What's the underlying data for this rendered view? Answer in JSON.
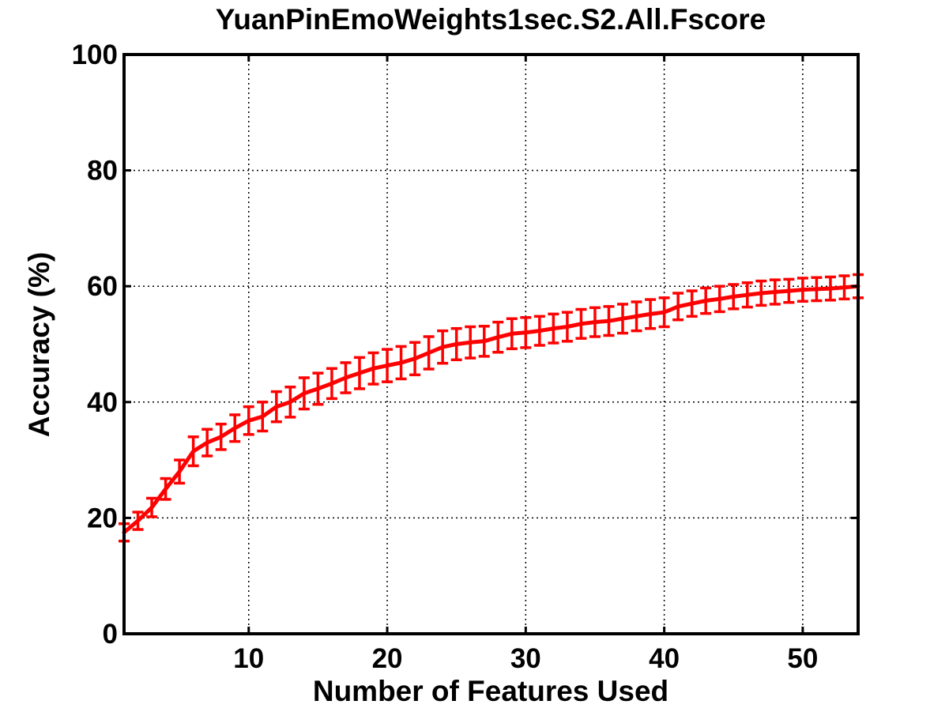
{
  "chart_data": {
    "type": "line",
    "title": "YuanPinEmoWeights1sec.S2.All.Fscore",
    "xlabel": "Number of Features Used",
    "ylabel": "Accuracy (%)",
    "xlim": [
      1,
      54
    ],
    "ylim": [
      0,
      100
    ],
    "xticks": [
      10,
      20,
      30,
      40,
      50
    ],
    "yticks": [
      0,
      20,
      40,
      60,
      80,
      100
    ],
    "grid": true,
    "grid_style": "dotted",
    "box": true,
    "series": [
      {
        "color": "#ff0000",
        "error_bars": true,
        "x": [
          1,
          2,
          3,
          4,
          5,
          6,
          7,
          8,
          9,
          10,
          11,
          12,
          13,
          14,
          15,
          16,
          17,
          18,
          19,
          20,
          21,
          22,
          23,
          24,
          25,
          26,
          27,
          28,
          29,
          30,
          31,
          32,
          33,
          34,
          35,
          36,
          37,
          38,
          39,
          40,
          41,
          42,
          43,
          44,
          45,
          46,
          47,
          48,
          49,
          50,
          51,
          52,
          53,
          54
        ],
        "values": [
          17.5,
          19.5,
          21.8,
          25.0,
          28.0,
          31.5,
          33.0,
          34.0,
          35.5,
          36.8,
          37.5,
          39.2,
          40.0,
          41.5,
          42.3,
          43.2,
          44.2,
          45.0,
          45.8,
          46.3,
          46.8,
          47.5,
          48.5,
          49.5,
          50.0,
          50.3,
          50.5,
          51.2,
          51.8,
          52.0,
          52.3,
          52.7,
          53.0,
          53.5,
          53.8,
          54.0,
          54.4,
          54.8,
          55.2,
          55.5,
          56.5,
          57.0,
          57.5,
          57.8,
          58.2,
          58.5,
          58.8,
          59.0,
          59.2,
          59.4,
          59.5,
          59.6,
          59.8,
          60.0
        ],
        "errors": [
          1.5,
          1.5,
          1.6,
          1.8,
          2.0,
          2.5,
          2.3,
          2.2,
          2.3,
          2.4,
          2.5,
          2.6,
          2.6,
          2.7,
          2.7,
          2.6,
          2.6,
          2.7,
          2.7,
          2.8,
          2.8,
          2.8,
          2.8,
          2.8,
          2.7,
          2.7,
          2.6,
          2.6,
          2.6,
          2.6,
          2.5,
          2.5,
          2.5,
          2.5,
          2.5,
          2.5,
          2.5,
          2.5,
          2.5,
          2.5,
          2.3,
          2.2,
          2.2,
          2.2,
          2.1,
          2.1,
          2.1,
          2.1,
          2.0,
          2.0,
          2.0,
          2.0,
          2.0,
          2.0
        ]
      }
    ]
  }
}
